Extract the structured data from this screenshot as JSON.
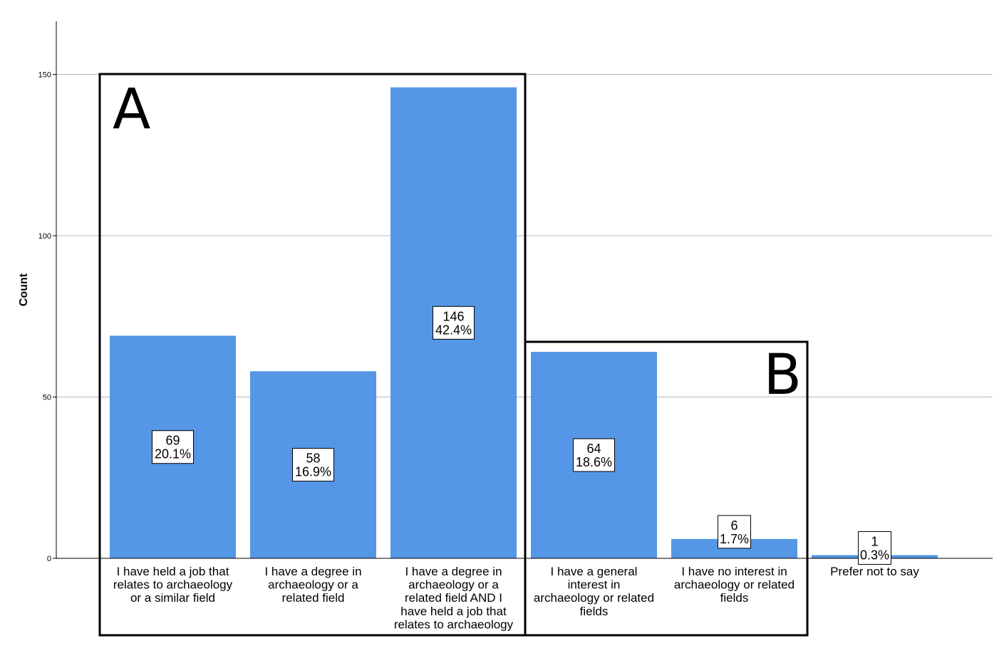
{
  "chart_data": {
    "type": "bar",
    "ylabel": "Count",
    "xlabel": "",
    "ylim": [
      0,
      165
    ],
    "yticks": [
      0,
      50,
      100,
      150
    ],
    "grid": true,
    "bar_color": "#5596e6",
    "categories": [
      "I have held a job that relates to archaeology or a similar field",
      "I have a degree in archaeology or a related field",
      "I have a degree in archaeology or a related field AND I have held a job that relates to archaeology",
      "I have a general interest in archaeology or related fields",
      "I have no interest in archaeology or related fields",
      "Prefer not to say"
    ],
    "category_lines": [
      [
        "I have held a job that",
        "relates to archaeology",
        "or a similar field"
      ],
      [
        "I have a degree in",
        "archaeology or a",
        "related field"
      ],
      [
        "I have a degree in",
        "archaeology or a",
        "related field AND I",
        "have held a job that",
        "relates to archaeology"
      ],
      [
        "I have a general",
        "interest in",
        "archaeology or related",
        "fields"
      ],
      [
        "I have no interest in",
        "archaeology or related",
        "fields"
      ],
      [
        "Prefer not to say"
      ]
    ],
    "values": [
      69,
      58,
      146,
      64,
      6,
      1
    ],
    "percent_labels": [
      "20.1%",
      "16.9%",
      "42.4%",
      "18.6%",
      "1.7%",
      "0.3%"
    ],
    "count_labels": [
      "69",
      "58",
      "146",
      "64",
      "6",
      "1"
    ],
    "groups": [
      {
        "label": "A",
        "categories": [
          0,
          1,
          2
        ]
      },
      {
        "label": "B",
        "categories": [
          3,
          4
        ]
      }
    ]
  }
}
